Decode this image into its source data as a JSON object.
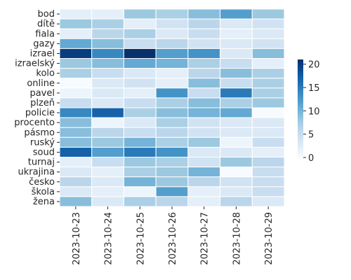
{
  "chart_data": {
    "type": "heatmap",
    "title": "",
    "xlabel": "",
    "ylabel": "",
    "x_categories": [
      "2023-10-23",
      "2023-10-24",
      "2023-10-25",
      "2023-10-26",
      "2023-10-27",
      "2023-10-28",
      "2023-10-29"
    ],
    "y_categories": [
      "bod",
      "dítě",
      "fiala",
      "gazy",
      "izrael",
      "izraelský",
      "kolo",
      "online",
      "pavel",
      "plzeň",
      "policie",
      "procento",
      "pásmo",
      "ruský",
      "soud",
      "turnaj",
      "ukrajina",
      "česko",
      "škola",
      "žena"
    ],
    "values": [
      [
        2,
        2,
        8,
        7,
        9,
        12,
        8
      ],
      [
        8,
        7,
        2,
        4,
        6,
        3,
        4
      ],
      [
        2,
        6,
        7,
        3,
        5,
        2,
        3
      ],
      [
        11,
        9,
        5,
        6,
        4,
        3,
        4
      ],
      [
        20,
        14,
        21,
        12,
        13,
        3,
        9
      ],
      [
        8,
        9,
        11,
        10,
        7,
        5,
        2
      ],
      [
        7,
        5,
        3,
        2,
        6,
        9,
        7
      ],
      [
        0,
        3,
        4,
        2,
        9,
        5,
        7
      ],
      [
        1,
        3,
        2,
        13,
        5,
        15,
        7
      ],
      [
        5,
        3,
        5,
        7,
        9,
        7,
        8
      ],
      [
        14,
        17,
        7,
        9,
        10,
        11,
        0
      ],
      [
        9,
        1,
        3,
        7,
        4,
        3,
        3
      ],
      [
        9,
        6,
        5,
        6,
        4,
        3,
        3
      ],
      [
        9,
        8,
        10,
        7,
        8,
        1,
        5
      ],
      [
        17,
        12,
        15,
        13,
        3,
        3,
        2
      ],
      [
        2,
        5,
        8,
        7,
        4,
        8,
        6
      ],
      [
        3,
        2,
        7,
        8,
        10,
        0,
        5
      ],
      [
        6,
        3,
        10,
        8,
        6,
        4,
        5
      ],
      [
        3,
        2,
        1,
        12,
        2,
        3,
        5
      ],
      [
        9,
        3,
        7,
        6,
        2,
        6,
        3
      ]
    ],
    "vmin": 0,
    "vmax": 21,
    "colorbar_ticks": [
      0,
      5,
      10,
      15,
      20
    ],
    "colormap": "Blues",
    "cell_border_color": "#ffffff",
    "colorbar_position": "right"
  }
}
